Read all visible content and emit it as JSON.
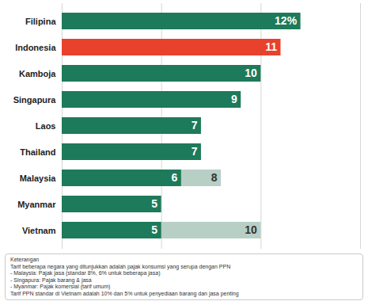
{
  "chart_data": {
    "type": "bar",
    "orientation": "horizontal",
    "categories": [
      "Filipina",
      "Indonesia",
      "Kamboja",
      "Singapura",
      "Laos",
      "Thailand",
      "Malaysia",
      "Myanmar",
      "Vietnam"
    ],
    "series": [
      {
        "colors": [
          "#1d7a5a",
          "#e8412c",
          "#1d7a5a",
          "#1d7a5a",
          "#1d7a5a",
          "#1d7a5a",
          "#1d7a5a",
          "#1d7a5a",
          "#1d7a5a"
        ],
        "values": [
          12,
          11,
          10,
          9,
          7,
          7,
          6,
          5,
          5
        ],
        "value_labels": [
          "12%",
          "11",
          "10",
          "9",
          "7",
          "7",
          "6",
          "5",
          "5"
        ]
      },
      {
        "color": "#b8cfc6",
        "values": [
          null,
          null,
          null,
          null,
          null,
          null,
          8,
          null,
          10
        ]
      }
    ],
    "stacked": false,
    "xlim": [
      0,
      15
    ],
    "xticks": [
      0,
      5,
      10,
      15
    ],
    "grid": true,
    "data_labels": true,
    "tick_labels": "y",
    "notes": [
      "Keterangan",
      "Tarif beberapa negara yang ditunjukkan adalah pajak konsumsi yang serupa dengan PPN",
      "- Malaysia: Pajak jasa (standar 8%, 6% untuk beberapa jasa)",
      "- Singapura: Pajak barang & jasa",
      "- Myanmar: Pajak komersial (tarif umum)",
      "Tarif PPN standar di Vietnam adalah 10% dan 5% untuk penyediaan barang dan jasa penting"
    ]
  }
}
